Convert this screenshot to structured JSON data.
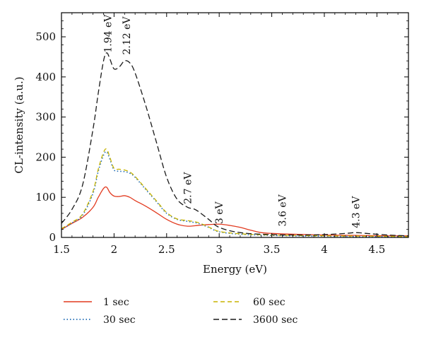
{
  "chart_data": {
    "type": "line",
    "xlabel": "Energy (eV)",
    "ylabel": "CL-intensity (a.u.)",
    "xlim": [
      1.5,
      4.8
    ],
    "ylim": [
      0,
      560
    ],
    "xticks": [
      1.5,
      2,
      2.5,
      3,
      3.5,
      4,
      4.5
    ],
    "xtick_labels": [
      "1.5",
      "2",
      "2.5",
      "3",
      "3.5",
      "4",
      "4.5"
    ],
    "yticks": [
      0,
      100,
      200,
      300,
      400,
      500
    ],
    "ytick_labels": [
      "0",
      "100",
      "200",
      "300",
      "400",
      "500"
    ],
    "grid": false,
    "legend_position": "bottom",
    "series": [
      {
        "name": "1 sec",
        "color": "#e23a1f",
        "dash": "solid",
        "x": [
          1.5,
          1.6,
          1.7,
          1.8,
          1.85,
          1.9,
          1.93,
          1.96,
          2.0,
          2.05,
          2.1,
          2.15,
          2.2,
          2.3,
          2.4,
          2.5,
          2.6,
          2.7,
          2.8,
          2.9,
          3.0,
          3.1,
          3.2,
          3.3,
          3.4,
          3.5,
          3.7,
          4.0,
          4.3,
          4.6,
          4.8
        ],
        "y": [
          20,
          35,
          50,
          75,
          100,
          122,
          125,
          112,
          103,
          102,
          104,
          100,
          92,
          78,
          62,
          45,
          33,
          28,
          30,
          32,
          33,
          30,
          25,
          18,
          12,
          10,
          8,
          6,
          5,
          4,
          4
        ]
      },
      {
        "name": "30 sec",
        "color": "#1f6bb5",
        "dash": "dotted",
        "x": [
          1.5,
          1.6,
          1.7,
          1.8,
          1.85,
          1.9,
          1.93,
          1.96,
          2.0,
          2.05,
          2.1,
          2.15,
          2.2,
          2.3,
          2.4,
          2.5,
          2.6,
          2.7,
          2.8,
          2.9,
          3.0,
          3.2,
          3.5,
          4.0,
          4.5,
          4.8
        ],
        "y": [
          20,
          36,
          55,
          110,
          165,
          205,
          213,
          195,
          168,
          165,
          164,
          160,
          150,
          120,
          90,
          60,
          45,
          40,
          35,
          25,
          14,
          8,
          5,
          3,
          2,
          2
        ]
      },
      {
        "name": "60 sec",
        "color": "#c8b400",
        "dash": "dashed",
        "x": [
          1.5,
          1.6,
          1.7,
          1.8,
          1.85,
          1.9,
          1.93,
          1.96,
          2.0,
          2.05,
          2.1,
          2.15,
          2.2,
          2.3,
          2.4,
          2.5,
          2.6,
          2.7,
          2.8,
          2.9,
          3.0,
          3.2,
          3.5,
          4.0,
          4.5,
          4.8
        ],
        "y": [
          22,
          38,
          58,
          115,
          170,
          212,
          220,
          200,
          172,
          170,
          168,
          163,
          152,
          122,
          92,
          62,
          46,
          42,
          37,
          26,
          15,
          9,
          6,
          4,
          3,
          2
        ]
      },
      {
        "name": "3600 sec",
        "color": "#1a1a1a",
        "dash": "longdash",
        "x": [
          1.5,
          1.6,
          1.7,
          1.8,
          1.85,
          1.9,
          1.93,
          1.96,
          2.0,
          2.05,
          2.1,
          2.15,
          2.2,
          2.3,
          2.4,
          2.5,
          2.6,
          2.7,
          2.75,
          2.8,
          2.9,
          3.0,
          3.2,
          3.5,
          3.8,
          4.0,
          4.2,
          4.3,
          4.4,
          4.6,
          4.8
        ],
        "y": [
          35,
          70,
          130,
          270,
          360,
          440,
          460,
          445,
          420,
          425,
          440,
          435,
          410,
          330,
          240,
          150,
          95,
          75,
          72,
          65,
          45,
          25,
          12,
          7,
          6,
          7,
          10,
          12,
          10,
          6,
          4
        ]
      }
    ],
    "annotations": [
      {
        "text": "1.94 eV",
        "x": 1.94,
        "y": 455
      },
      {
        "text": "2.12 eV",
        "x": 2.12,
        "y": 450
      },
      {
        "text": "2.7 eV",
        "x": 2.7,
        "y": 78
      },
      {
        "text": "3 eV",
        "x": 3.0,
        "y": 28
      },
      {
        "text": "3.6 eV",
        "x": 3.6,
        "y": 22
      },
      {
        "text": "4.3 eV",
        "x": 4.3,
        "y": 18
      }
    ]
  }
}
